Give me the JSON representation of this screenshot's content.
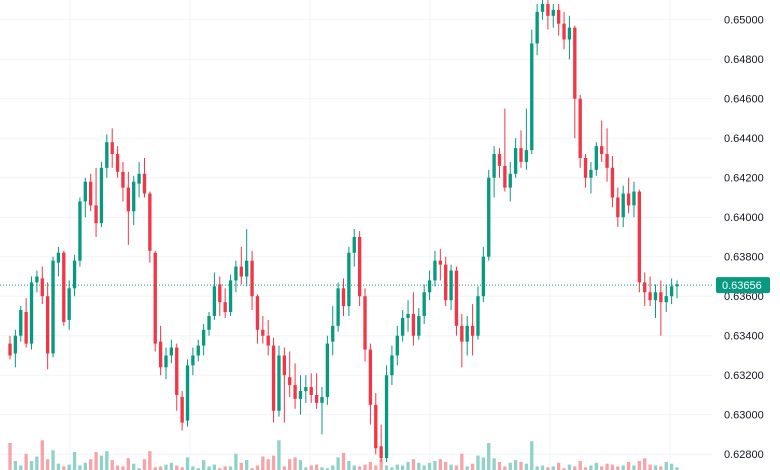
{
  "chart_data": {
    "type": "candlestick",
    "y_axis": {
      "position": "right",
      "ylim": [
        0.6272,
        0.651
      ],
      "ticks": [
        "0.65000",
        "0.64800",
        "0.64600",
        "0.64400",
        "0.64200",
        "0.64000",
        "0.63800",
        "0.63600",
        "0.63400",
        "0.63200",
        "0.63000",
        "0.62800"
      ]
    },
    "last_price": "0.63656",
    "grid": true,
    "colors": {
      "up": "#089981",
      "down": "#f23645",
      "up_volume": "#8fd2c7",
      "down_volume": "#f6a3a9",
      "grid": "#f0f3fa",
      "price_line": "#089981",
      "badge_bg": "#089981",
      "badge_text": "#ffffff",
      "axis_text": "#131722"
    },
    "candles": [
      [
        0.6336,
        0.634,
        0.6328,
        0.633
      ],
      [
        0.6331,
        0.6343,
        0.6324,
        0.634
      ],
      [
        0.634,
        0.6355,
        0.6337,
        0.6353
      ],
      [
        0.6352,
        0.6359,
        0.6334,
        0.6336
      ],
      [
        0.6336,
        0.637,
        0.6333,
        0.6367
      ],
      [
        0.6367,
        0.6373,
        0.6362,
        0.637
      ],
      [
        0.6369,
        0.6375,
        0.6356,
        0.636
      ],
      [
        0.636,
        0.6367,
        0.6323,
        0.6331
      ],
      [
        0.6331,
        0.638,
        0.6329,
        0.6378
      ],
      [
        0.6377,
        0.6385,
        0.637,
        0.6382
      ],
      [
        0.6382,
        0.6383,
        0.6345,
        0.6347
      ],
      [
        0.6348,
        0.6368,
        0.6343,
        0.6364
      ],
      [
        0.6364,
        0.6381,
        0.636,
        0.6378
      ],
      [
        0.6378,
        0.641,
        0.6375,
        0.6408
      ],
      [
        0.6408,
        0.642,
        0.64,
        0.6418
      ],
      [
        0.6418,
        0.6422,
        0.6403,
        0.6406
      ],
      [
        0.6406,
        0.6425,
        0.639,
        0.6397
      ],
      [
        0.6397,
        0.6428,
        0.6395,
        0.6425
      ],
      [
        0.6425,
        0.6442,
        0.642,
        0.6438
      ],
      [
        0.6438,
        0.6445,
        0.6425,
        0.6432
      ],
      [
        0.6432,
        0.6436,
        0.642,
        0.6423
      ],
      [
        0.6423,
        0.6428,
        0.6408,
        0.6415
      ],
      [
        0.6415,
        0.6423,
        0.6386,
        0.6403
      ],
      [
        0.6403,
        0.6421,
        0.6396,
        0.6418
      ],
      [
        0.6417,
        0.6428,
        0.641,
        0.6422
      ],
      [
        0.6422,
        0.643,
        0.641,
        0.6412
      ],
      [
        0.6412,
        0.6413,
        0.6377,
        0.6383
      ],
      [
        0.6382,
        0.6383,
        0.6332,
        0.6336
      ],
      [
        0.6337,
        0.6345,
        0.632,
        0.6324
      ],
      [
        0.6324,
        0.6334,
        0.6318,
        0.633
      ],
      [
        0.633,
        0.6338,
        0.6326,
        0.6334
      ],
      [
        0.6334,
        0.6336,
        0.6302,
        0.631
      ],
      [
        0.6309,
        0.6312,
        0.6292,
        0.6296
      ],
      [
        0.6297,
        0.6328,
        0.6294,
        0.6325
      ],
      [
        0.6325,
        0.6334,
        0.632,
        0.633
      ],
      [
        0.633,
        0.6338,
        0.6327,
        0.6335
      ],
      [
        0.6335,
        0.6346,
        0.633,
        0.6343
      ],
      [
        0.6343,
        0.6352,
        0.634,
        0.635
      ],
      [
        0.635,
        0.6372,
        0.6348,
        0.6365
      ],
      [
        0.6366,
        0.637,
        0.635,
        0.6357
      ],
      [
        0.6357,
        0.6364,
        0.6349,
        0.6352
      ],
      [
        0.6352,
        0.6371,
        0.635,
        0.6368
      ],
      [
        0.6368,
        0.6378,
        0.6362,
        0.6375
      ],
      [
        0.6375,
        0.6385,
        0.6366,
        0.637
      ],
      [
        0.637,
        0.6394,
        0.6365,
        0.6378
      ],
      [
        0.6378,
        0.6383,
        0.6353,
        0.636
      ],
      [
        0.636,
        0.6361,
        0.6336,
        0.6343
      ],
      [
        0.6343,
        0.635,
        0.6336,
        0.634
      ],
      [
        0.634,
        0.6348,
        0.633,
        0.6335
      ],
      [
        0.6335,
        0.6339,
        0.6296,
        0.6302
      ],
      [
        0.6302,
        0.6335,
        0.6299,
        0.633
      ],
      [
        0.633,
        0.6334,
        0.6296,
        0.632
      ],
      [
        0.6319,
        0.6332,
        0.6309,
        0.6315
      ],
      [
        0.6315,
        0.6326,
        0.6303,
        0.6308
      ],
      [
        0.6308,
        0.632,
        0.63,
        0.6312
      ],
      [
        0.6312,
        0.632,
        0.6306,
        0.6314
      ],
      [
        0.6314,
        0.6321,
        0.6306,
        0.631
      ],
      [
        0.631,
        0.6321,
        0.6303,
        0.6306
      ],
      [
        0.6306,
        0.6314,
        0.629,
        0.6309
      ],
      [
        0.6309,
        0.634,
        0.6305,
        0.6336
      ],
      [
        0.6337,
        0.6355,
        0.633,
        0.6345
      ],
      [
        0.6345,
        0.6367,
        0.6342,
        0.6364
      ],
      [
        0.6364,
        0.6369,
        0.635,
        0.6355
      ],
      [
        0.6355,
        0.6385,
        0.635,
        0.6382
      ],
      [
        0.6382,
        0.6394,
        0.6375,
        0.639
      ],
      [
        0.639,
        0.6393,
        0.6355,
        0.636
      ],
      [
        0.636,
        0.6364,
        0.6327,
        0.6333
      ],
      [
        0.6333,
        0.6336,
        0.6295,
        0.6305
      ],
      [
        0.6305,
        0.6311,
        0.628,
        0.6283
      ],
      [
        0.6284,
        0.6295,
        0.6276,
        0.6278
      ],
      [
        0.6278,
        0.6325,
        0.6276,
        0.632
      ],
      [
        0.632,
        0.6335,
        0.6315,
        0.633
      ],
      [
        0.633,
        0.6345,
        0.6325,
        0.634
      ],
      [
        0.634,
        0.6353,
        0.6337,
        0.6349
      ],
      [
        0.6349,
        0.6358,
        0.6342,
        0.6351
      ],
      [
        0.6351,
        0.6362,
        0.6335,
        0.634
      ],
      [
        0.634,
        0.6354,
        0.6338,
        0.635
      ],
      [
        0.635,
        0.6366,
        0.6346,
        0.6362
      ],
      [
        0.6362,
        0.6373,
        0.6358,
        0.6368
      ],
      [
        0.6368,
        0.6383,
        0.6365,
        0.6378
      ],
      [
        0.6378,
        0.6384,
        0.6368,
        0.6376
      ],
      [
        0.6376,
        0.638,
        0.6355,
        0.6358
      ],
      [
        0.6358,
        0.6376,
        0.6353,
        0.6373
      ],
      [
        0.6373,
        0.6375,
        0.634,
        0.6345
      ],
      [
        0.6345,
        0.6351,
        0.6324,
        0.6337
      ],
      [
        0.6337,
        0.635,
        0.633,
        0.6345
      ],
      [
        0.6345,
        0.6356,
        0.633,
        0.634
      ],
      [
        0.634,
        0.6365,
        0.6338,
        0.636
      ],
      [
        0.636,
        0.6385,
        0.6357,
        0.638
      ],
      [
        0.638,
        0.6424,
        0.6378,
        0.642
      ],
      [
        0.642,
        0.6436,
        0.641,
        0.6432
      ],
      [
        0.6432,
        0.6435,
        0.642,
        0.6426
      ],
      [
        0.6426,
        0.6455,
        0.6413,
        0.6415
      ],
      [
        0.6415,
        0.6428,
        0.6408,
        0.6422
      ],
      [
        0.6422,
        0.644,
        0.642,
        0.6435
      ],
      [
        0.6435,
        0.6444,
        0.6425,
        0.6428
      ],
      [
        0.6428,
        0.6455,
        0.6424,
        0.6434
      ],
      [
        0.6434,
        0.6495,
        0.6432,
        0.6488
      ],
      [
        0.6488,
        0.6508,
        0.6482,
        0.6504
      ],
      [
        0.6504,
        0.651,
        0.65,
        0.6508
      ],
      [
        0.6508,
        0.6511,
        0.6495,
        0.6502
      ],
      [
        0.6502,
        0.6508,
        0.6496,
        0.6505
      ],
      [
        0.6505,
        0.6508,
        0.6492,
        0.6498
      ],
      [
        0.6498,
        0.6504,
        0.6485,
        0.649
      ],
      [
        0.649,
        0.6502,
        0.648,
        0.6496
      ],
      [
        0.6496,
        0.6497,
        0.644,
        0.646
      ],
      [
        0.646,
        0.6462,
        0.6425,
        0.643
      ],
      [
        0.643,
        0.6432,
        0.6415,
        0.642
      ],
      [
        0.642,
        0.6428,
        0.6412,
        0.6424
      ],
      [
        0.6424,
        0.6438,
        0.6421,
        0.6436
      ],
      [
        0.6436,
        0.6449,
        0.6428,
        0.6432
      ],
      [
        0.6432,
        0.6445,
        0.6418,
        0.6425
      ],
      [
        0.6425,
        0.6431,
        0.6405,
        0.641
      ],
      [
        0.641,
        0.6415,
        0.6395,
        0.64
      ],
      [
        0.64,
        0.6416,
        0.6395,
        0.6412
      ],
      [
        0.6412,
        0.642,
        0.6402,
        0.6406
      ],
      [
        0.6406,
        0.6418,
        0.64,
        0.6413
      ],
      [
        0.6413,
        0.6414,
        0.6362,
        0.6367
      ],
      [
        0.6367,
        0.6372,
        0.6355,
        0.6362
      ],
      [
        0.6362,
        0.637,
        0.6355,
        0.6358
      ],
      [
        0.6358,
        0.6366,
        0.6349,
        0.6362
      ],
      [
        0.6362,
        0.6368,
        0.634,
        0.6357
      ],
      [
        0.6357,
        0.6366,
        0.6352,
        0.636
      ],
      [
        0.636,
        0.6369,
        0.6356,
        0.6365
      ],
      [
        0.6365,
        0.6368,
        0.6359,
        0.6366
      ]
    ],
    "volumes": [
      0.3,
      0.1,
      0.05,
      0.18,
      0.1,
      0.15,
      0.33,
      0.12,
      0.22,
      0.07,
      0.04,
      0.06,
      0.2,
      0.05,
      0.08,
      0.12,
      0.2,
      0.16,
      0.21,
      0.11,
      0.05,
      0.04,
      0.13,
      0.07,
      0.02,
      0.12,
      0.21,
      0.03,
      0.04,
      0.06,
      0.08,
      0.05,
      0.03,
      0.14,
      0.04,
      0.02,
      0.11,
      0.04,
      0.06,
      0.02,
      0.04,
      0.04,
      0.18,
      0.08,
      0.11,
      0.02,
      0.05,
      0.15,
      0.12,
      0.16,
      0.33,
      0.04,
      0.12,
      0.14,
      0.11,
      0.03,
      0.05,
      0.06,
      0.03,
      0.02,
      0.05,
      0.14,
      0.19,
      0.1,
      0.05,
      0.04,
      0.06,
      0.09,
      0.05,
      0.12,
      0.05,
      0.03,
      0.06,
      0.05,
      0.09,
      0.12,
      0.08,
      0.05,
      0.08,
      0.1,
      0.12,
      0.09,
      0.06,
      0.05,
      0.18,
      0.04,
      0.07,
      0.16,
      0.14,
      0.3,
      0.13,
      0.09,
      0.04,
      0.08,
      0.11,
      0.09,
      0.07,
      0.32,
      0.04,
      0.05,
      0.03,
      0.04,
      0.08,
      0.02,
      0.06,
      0.04,
      0.1,
      0.03,
      0.05,
      0.08,
      0.04,
      0.07,
      0.06,
      0.04,
      0.05,
      0.09,
      0.05,
      0.1,
      0.13,
      0.06,
      0.05,
      0.04,
      0.09,
      0.07,
      0.03
    ]
  }
}
